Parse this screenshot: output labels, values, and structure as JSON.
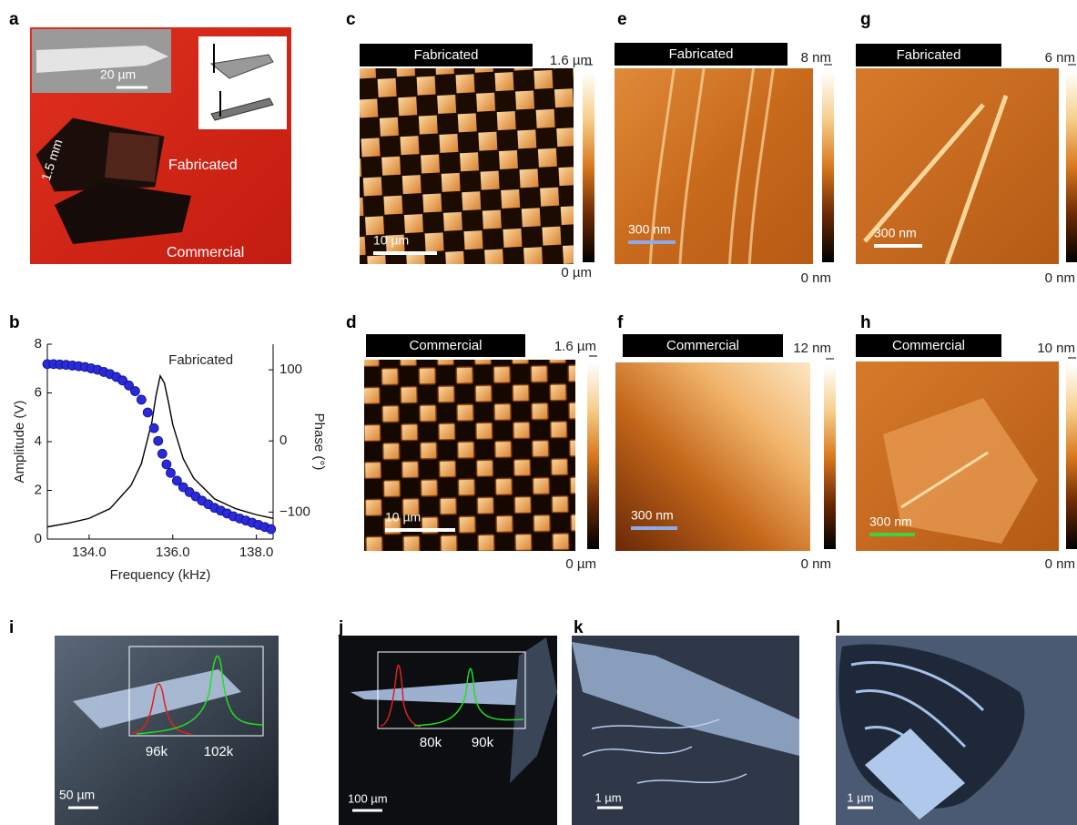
{
  "panels": {
    "a": {
      "label": "a",
      "inset_scale": "20 µm",
      "length": "1.5 mm",
      "fabricated": "Fabricated",
      "commercial": "Commercial"
    },
    "b": {
      "label": "b"
    },
    "c": {
      "label": "c",
      "header": "Fabricated",
      "max": "1.6 µm",
      "min": "0 µm",
      "scale": "10 µm"
    },
    "d": {
      "label": "d",
      "header": "Commercial",
      "max": "1.6 µm",
      "min": "0 µm",
      "scale": "10 µm"
    },
    "e": {
      "label": "e",
      "header": "Fabricated",
      "max": "8 nm",
      "min": "0 nm",
      "scale": "300 nm"
    },
    "f": {
      "label": "f",
      "header": "Commercial",
      "max": "12 nm",
      "min": "0 nm",
      "scale": "300 nm"
    },
    "g": {
      "label": "g",
      "header": "Fabricated",
      "max": "6 nm",
      "min": "0 nm",
      "scale": "300 nm"
    },
    "h": {
      "label": "h",
      "header": "Commercial",
      "max": "10 nm",
      "min": "0 nm",
      "scale": "300 nm"
    },
    "i": {
      "label": "i",
      "peaks": [
        "96k",
        "102k"
      ],
      "scale": "50 µm"
    },
    "j": {
      "label": "j",
      "peaks": [
        "80k",
        "90k"
      ],
      "scale": "100 µm"
    },
    "k": {
      "label": "k",
      "scale": "1 µm"
    },
    "l": {
      "label": "l",
      "scale": "1 µm"
    }
  },
  "chart_data": {
    "type": "combo",
    "annotation": "Fabricated",
    "x_label": "Frequency (kHz)",
    "y_label": "Amplitude (V)",
    "y2_label": "Phase (°)",
    "xlim": [
      133,
      138.4
    ],
    "xticks": [
      {
        "value": 134,
        "label": "134.0"
      },
      {
        "value": 136,
        "label": "136.0"
      },
      {
        "value": 138,
        "label": "138.0"
      }
    ],
    "ylim": [
      0,
      8
    ],
    "yticks": [
      0,
      2,
      4,
      6,
      8
    ],
    "y2lim": [
      -138,
      136
    ],
    "y2ticks": [
      100,
      0,
      {
        "value": -100,
        "label": "−100"
      }
    ],
    "y2_color": "#2020d0",
    "series": [
      {
        "type": "line",
        "color": "#000000",
        "x": [
          133.0,
          133.5,
          134.0,
          134.5,
          135.0,
          135.25,
          135.5,
          135.6,
          135.7,
          135.8,
          135.9,
          136.0,
          136.25,
          136.5,
          137.0,
          137.5,
          138.0,
          138.4
        ],
        "values": [
          0.5,
          0.65,
          0.85,
          1.25,
          2.2,
          3.1,
          4.8,
          5.9,
          6.7,
          6.4,
          5.6,
          4.7,
          3.3,
          2.5,
          1.65,
          1.25,
          1.0,
          0.85
        ]
      },
      {
        "type": "scatter",
        "axis": "y2",
        "color": "#2a2ad8",
        "x": [
          133.0,
          133.15,
          133.3,
          133.45,
          133.6,
          133.75,
          133.9,
          134.05,
          134.2,
          134.35,
          134.5,
          134.65,
          134.8,
          134.95,
          135.1,
          135.25,
          135.4,
          135.55,
          135.65,
          135.75,
          135.85,
          135.95,
          136.1,
          136.25,
          136.4,
          136.55,
          136.7,
          136.85,
          137.0,
          137.15,
          137.3,
          137.45,
          137.6,
          137.75,
          137.9,
          138.05,
          138.2,
          138.35
        ],
        "values": [
          108,
          108,
          107.5,
          107,
          106,
          105,
          104,
          102,
          100,
          97,
          94,
          90,
          85,
          78,
          70,
          58,
          40,
          18,
          0,
          -18,
          -33,
          -45,
          -56,
          -65,
          -72,
          -78,
          -84,
          -89,
          -94,
          -98,
          -102,
          -106,
          -109,
          -112,
          -115,
          -118,
          -121,
          -124
        ]
      }
    ]
  }
}
